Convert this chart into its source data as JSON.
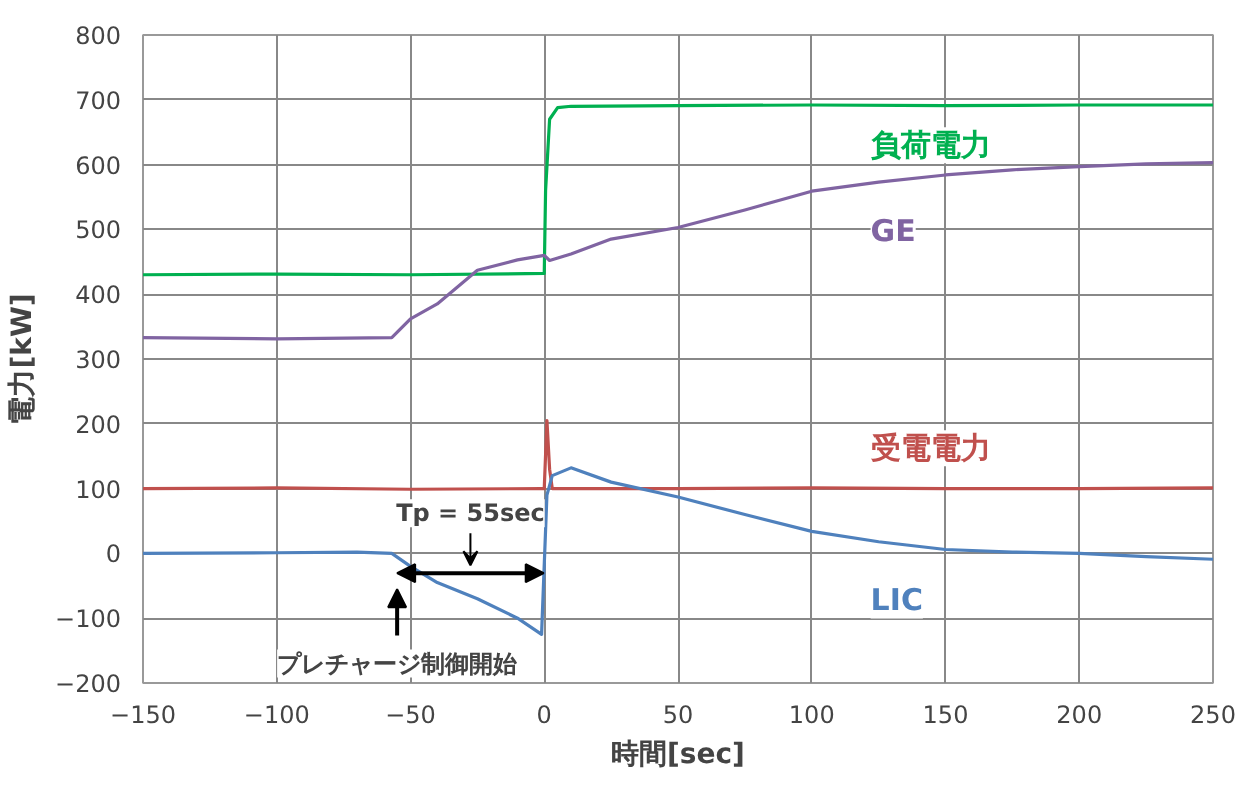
{
  "chart_data": {
    "type": "line",
    "xlabel": "時間[sec]",
    "ylabel": "電力[kW]",
    "xlim": [
      -150,
      250
    ],
    "xticks": [
      -150,
      -100,
      -50,
      0,
      50,
      100,
      150,
      200,
      250
    ],
    "ylim": [
      -200,
      800
    ],
    "yticks": [
      -200,
      -100,
      0,
      100,
      200,
      300,
      400,
      500,
      600,
      700,
      800
    ],
    "grid": true,
    "marker": "none",
    "line_style": "solid",
    "series": [
      {
        "name": "負荷電力",
        "color": "#00b050",
        "x": [
          -150,
          -100,
          -50,
          0,
          0.5,
          2,
          5,
          10,
          50,
          100,
          150,
          200,
          250
        ],
        "values": [
          430,
          431,
          430,
          432,
          560,
          670,
          688,
          690,
          691,
          692,
          691,
          692,
          692
        ]
      },
      {
        "name": "GE",
        "color": "#8064a2",
        "x": [
          -150,
          -100,
          -57,
          -50,
          -40,
          -25,
          -10,
          0,
          2,
          10,
          25,
          50,
          75,
          100,
          125,
          150,
          175,
          200,
          225,
          250
        ],
        "values": [
          333,
          331,
          333,
          362,
          385,
          437,
          453,
          460,
          452,
          462,
          485,
          503,
          530,
          559,
          573,
          584,
          592,
          597,
          601,
          603
        ]
      },
      {
        "name": "受電電力",
        "color": "#c0504d",
        "x": [
          -150,
          -100,
          -50,
          -1,
          0,
          1,
          2,
          3,
          50,
          100,
          150,
          200,
          250
        ],
        "values": [
          100,
          101,
          99,
          100,
          100,
          205,
          130,
          100,
          100,
          101,
          100,
          100,
          101
        ]
      },
      {
        "name": "LIC",
        "color": "#4f81bd",
        "x": [
          -150,
          -100,
          -70,
          -57,
          -50,
          -40,
          -25,
          -10,
          -1,
          1,
          3,
          10,
          25,
          50,
          75,
          100,
          125,
          150,
          175,
          200,
          225,
          250
        ],
        "values": [
          0,
          1,
          2,
          0,
          -20,
          -45,
          -70,
          -100,
          -125,
          90,
          120,
          132,
          110,
          87,
          60,
          34,
          18,
          6,
          2,
          0,
          -5,
          -9
        ]
      }
    ],
    "annotations": [
      "Tp = 55sec",
      "プレチャージ制御開始"
    ]
  }
}
